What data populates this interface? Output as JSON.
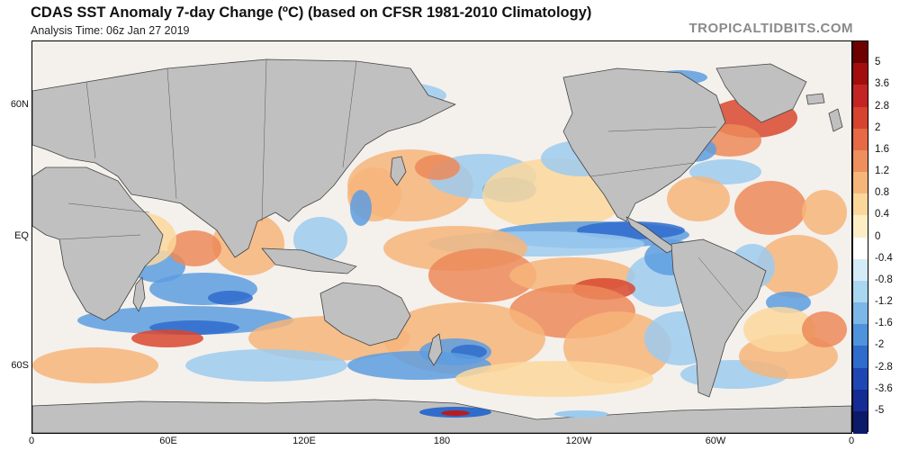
{
  "header": {
    "title": "CDAS SST Anomaly 7-day Change (ºC) (based on CFSR 1981-2010 Climatology)",
    "analysis_time": "Analysis Time: 06z Jan 27 2019",
    "brand": "TROPICALTIDBITS.COM"
  },
  "map": {
    "lat_labels": [
      "60N",
      "EQ",
      "60S"
    ],
    "lon_labels": [
      "0",
      "60E",
      "120E",
      "180",
      "120W",
      "60W",
      "0"
    ],
    "land_color": "#c0c0c0",
    "ocean_base_color": "#f4f0ec"
  },
  "colorbar": {
    "labels": [
      "5",
      "3.6",
      "2.8",
      "2",
      "1.6",
      "1.2",
      "0.8",
      "0.4",
      "0",
      "-0.4",
      "-0.8",
      "-1.2",
      "-1.6",
      "-2",
      "-2.8",
      "-3.6",
      "-5"
    ],
    "colors": [
      "#6e0000",
      "#a30d0d",
      "#c42424",
      "#d6432f",
      "#e56a45",
      "#ef8f5d",
      "#f6b67a",
      "#fbd79c",
      "#fdeec6",
      "#ffffff",
      "#d4ecf7",
      "#a9d6f0",
      "#7bb8e8",
      "#4f93dc",
      "#2f6ccc",
      "#1f47b4",
      "#152c94",
      "#0c1a6a"
    ]
  }
}
